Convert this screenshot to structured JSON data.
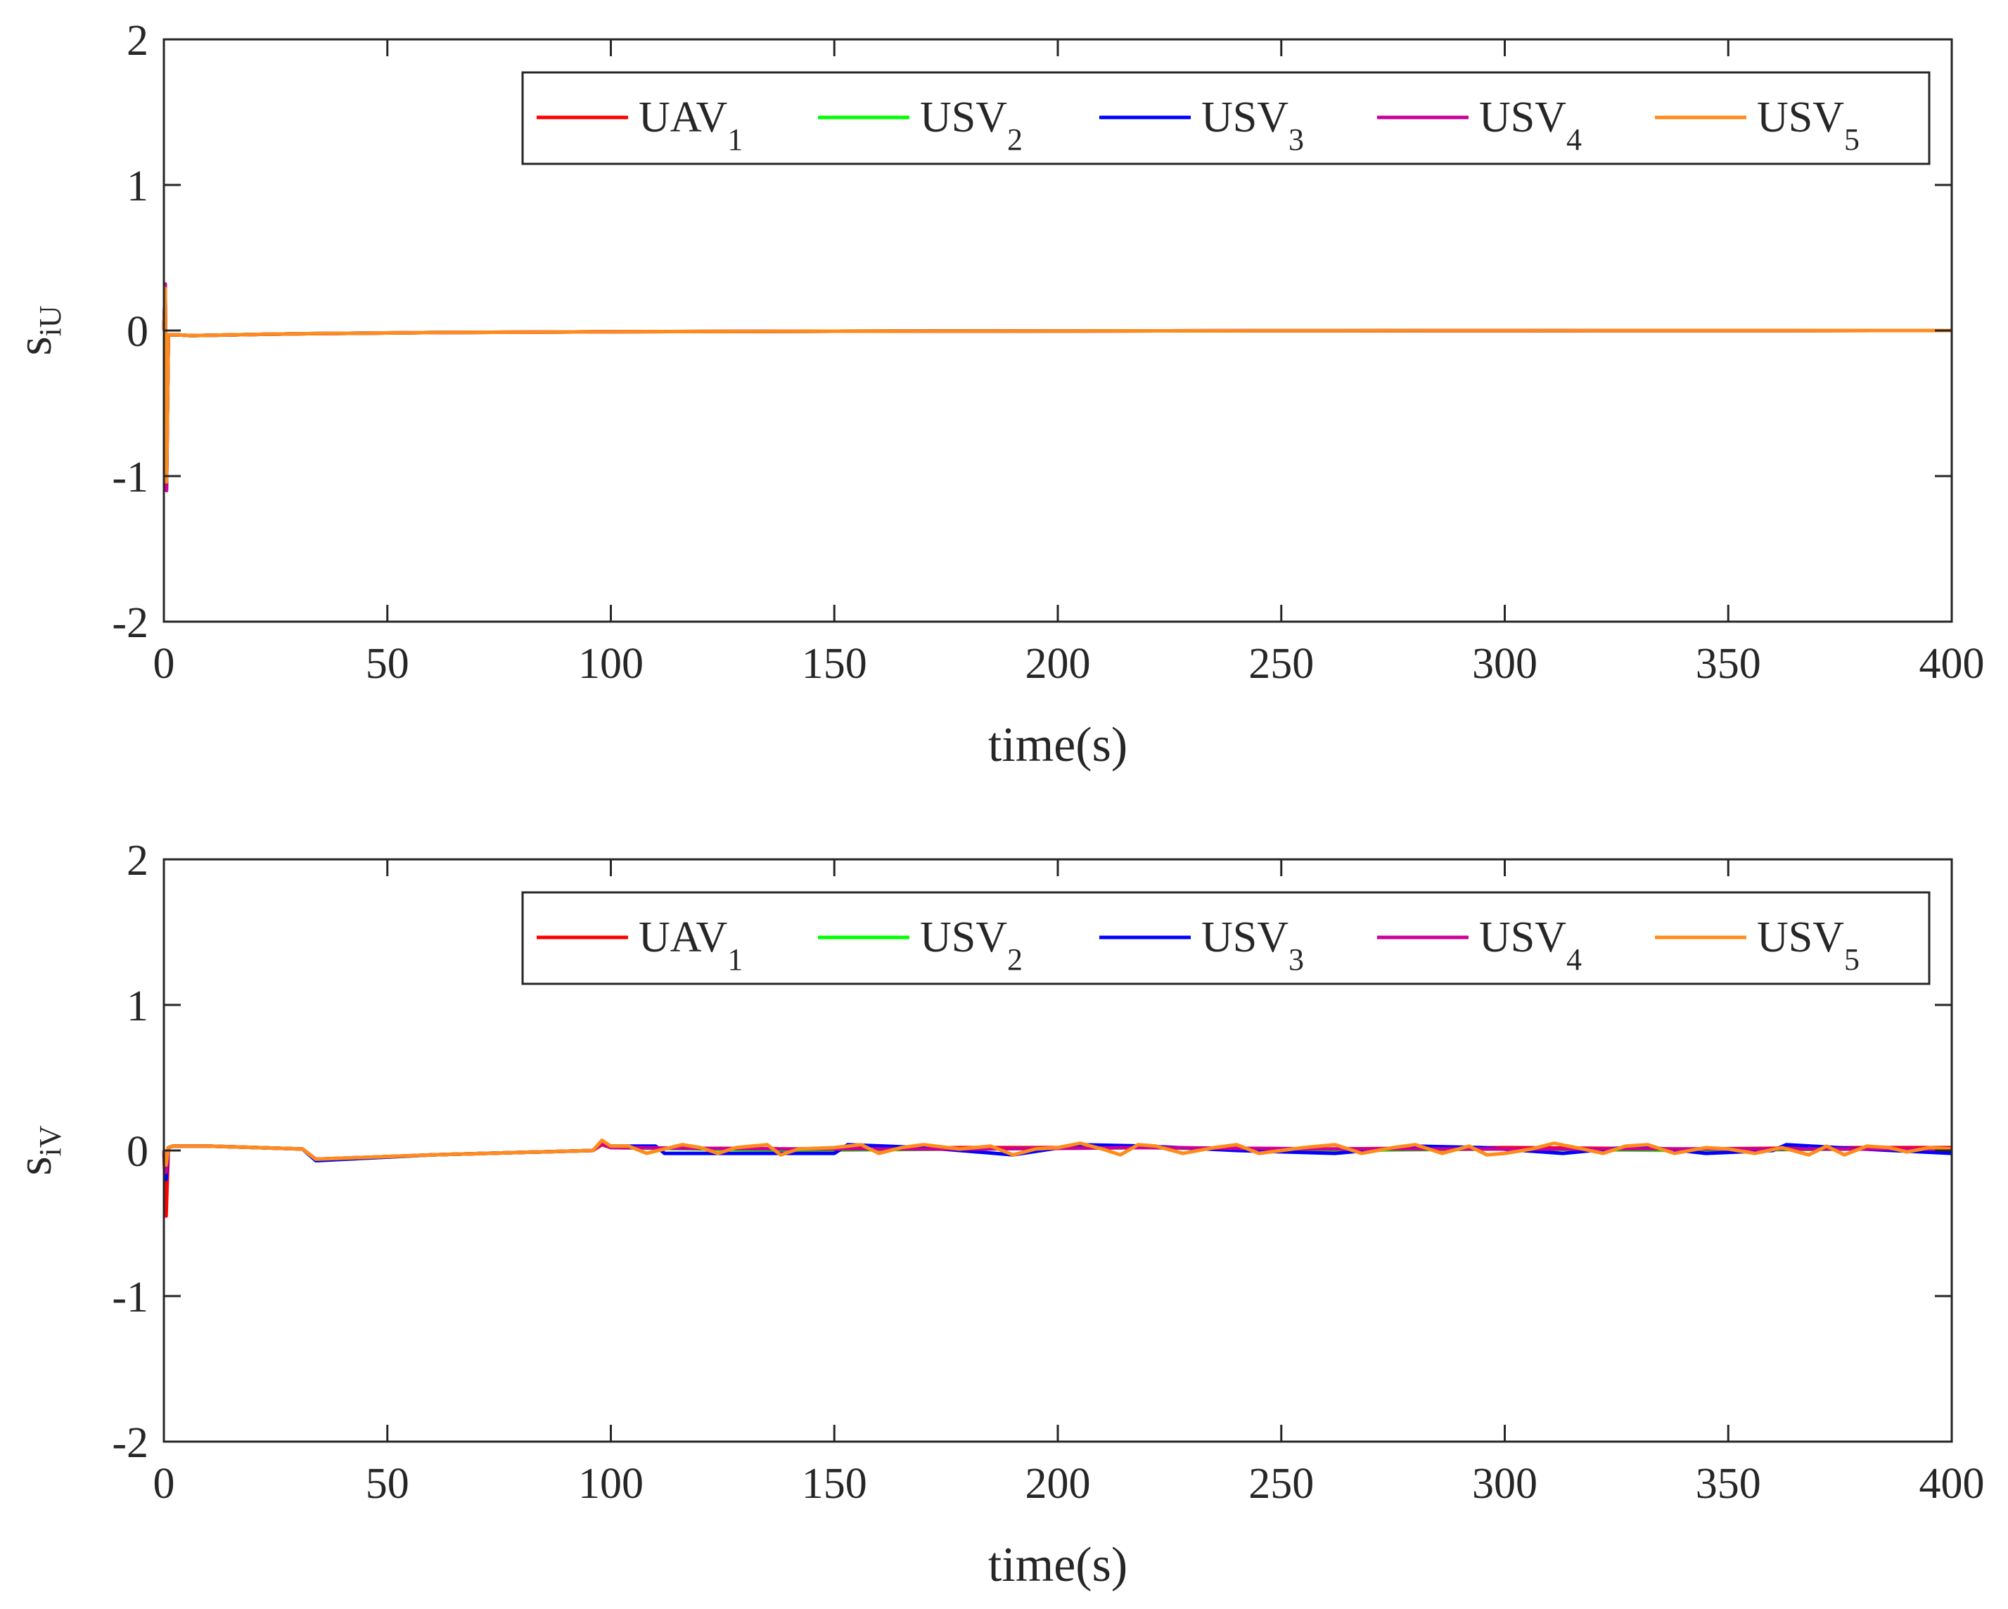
{
  "colors": {
    "UAV1": "#ff0000",
    "USV2": "#00ff00",
    "USV3": "#0000ff",
    "USV4": "#cc0099",
    "USV5": "#ff8c1a",
    "axis": "#262626"
  },
  "legend_entries": [
    {
      "base": "UAV",
      "sub": "1",
      "color_key": "UAV1"
    },
    {
      "base": "USV",
      "sub": "2",
      "color_key": "USV2"
    },
    {
      "base": "USV",
      "sub": "3",
      "color_key": "USV3"
    },
    {
      "base": "USV",
      "sub": "4",
      "color_key": "USV4"
    },
    {
      "base": "USV",
      "sub": "5",
      "color_key": "USV5"
    }
  ],
  "chart_data": [
    {
      "type": "line",
      "title": "",
      "xlabel": "time(s)",
      "ylabel_base": "s",
      "ylabel_sub": "iU",
      "xlim": [
        0,
        400
      ],
      "ylim": [
        -2,
        2
      ],
      "xticks": [
        0,
        50,
        100,
        150,
        200,
        250,
        300,
        350,
        400
      ],
      "yticks": [
        -2,
        -1,
        0,
        1,
        2
      ],
      "legend_location": "top-right",
      "grid": false,
      "series": [
        {
          "name": "UAV1",
          "x": [
            0,
            0.3,
            0.6,
            1,
            3,
            6,
            15,
            30,
            60,
            100,
            150,
            200,
            300,
            400
          ],
          "y": [
            0,
            0.28,
            -1.05,
            -0.03,
            -0.03,
            -0.035,
            -0.03,
            -0.022,
            -0.014,
            -0.008,
            -0.005,
            -0.003,
            -0.001,
            0
          ]
        },
        {
          "name": "USV2",
          "x": [
            0,
            0.3,
            0.6,
            1,
            3,
            6,
            15,
            30,
            60,
            100,
            150,
            200,
            300,
            400
          ],
          "y": [
            0,
            0.29,
            -1.06,
            -0.03,
            -0.03,
            -0.035,
            -0.03,
            -0.022,
            -0.014,
            -0.008,
            -0.005,
            -0.003,
            -0.001,
            0
          ]
        },
        {
          "name": "USV3",
          "x": [
            0,
            0.3,
            0.6,
            1,
            3,
            6,
            15,
            30,
            60,
            100,
            150,
            200,
            300,
            400
          ],
          "y": [
            0,
            0.3,
            -1.07,
            -0.03,
            -0.03,
            -0.035,
            -0.03,
            -0.022,
            -0.014,
            -0.008,
            -0.005,
            -0.003,
            -0.001,
            0
          ]
        },
        {
          "name": "USV4",
          "x": [
            0,
            0.3,
            0.6,
            1,
            3,
            6,
            15,
            30,
            60,
            100,
            150,
            200,
            300,
            400
          ],
          "y": [
            0,
            0.32,
            -1.1,
            -0.03,
            -0.03,
            -0.035,
            -0.03,
            -0.022,
            -0.014,
            -0.008,
            -0.005,
            -0.003,
            -0.001,
            0
          ]
        },
        {
          "name": "USV5",
          "x": [
            0,
            0.3,
            0.6,
            1,
            3,
            6,
            15,
            30,
            60,
            100,
            150,
            200,
            300,
            400
          ],
          "y": [
            0,
            0.29,
            -1.04,
            -0.03,
            -0.03,
            -0.035,
            -0.03,
            -0.022,
            -0.014,
            -0.008,
            -0.005,
            -0.003,
            -0.001,
            0
          ]
        }
      ]
    },
    {
      "type": "line",
      "title": "",
      "xlabel": "time(s)",
      "ylabel_base": "s",
      "ylabel_sub": "iV",
      "xlim": [
        0,
        400
      ],
      "ylim": [
        -2,
        2
      ],
      "xticks": [
        0,
        50,
        100,
        150,
        200,
        250,
        300,
        350,
        400
      ],
      "yticks": [
        -2,
        -1,
        0,
        1,
        2
      ],
      "legend_location": "top-right",
      "grid": false,
      "series": [
        {
          "name": "UAV1",
          "x": [
            0,
            0.5,
            1,
            2,
            10,
            31,
            34,
            60,
            96,
            98,
            100,
            140,
            180,
            220,
            260,
            300,
            340,
            380,
            400
          ],
          "y": [
            0,
            -0.45,
            0.02,
            0.03,
            0.03,
            0.01,
            -0.06,
            -0.03,
            0,
            0.04,
            0.02,
            0.01,
            0.02,
            0.02,
            0.01,
            0.02,
            0.01,
            0.02,
            0.02
          ]
        },
        {
          "name": "USV2",
          "x": [
            0,
            0.5,
            1,
            2,
            10,
            31,
            34,
            60,
            96,
            98,
            100,
            140,
            180,
            220,
            260,
            300,
            340,
            380,
            400
          ],
          "y": [
            0,
            -0.2,
            0.02,
            0.03,
            0.03,
            0.01,
            -0.07,
            -0.03,
            0,
            0.05,
            0.02,
            0,
            0.01,
            0.02,
            0,
            0.01,
            0,
            0.01,
            0
          ]
        },
        {
          "name": "USV3",
          "x": [
            0,
            0.5,
            1,
            2,
            10,
            31,
            34,
            60,
            96,
            98,
            100,
            110,
            112,
            150,
            153,
            170,
            190,
            205,
            220,
            240,
            262,
            280,
            295,
            313,
            330,
            345,
            360,
            363,
            380,
            400
          ],
          "y": [
            0,
            -0.2,
            0.02,
            0.03,
            0.03,
            0.01,
            -0.07,
            -0.03,
            0,
            0.06,
            0.03,
            0.03,
            -0.02,
            -0.02,
            0.04,
            0.02,
            -0.03,
            0.04,
            0.03,
            0,
            -0.02,
            0.03,
            0.02,
            -0.02,
            0.03,
            -0.02,
            0,
            0.04,
            0.01,
            -0.02
          ]
        },
        {
          "name": "USV4",
          "x": [
            0,
            0.5,
            1,
            2,
            10,
            31,
            34,
            60,
            96,
            98,
            100,
            140,
            180,
            220,
            260,
            300,
            340,
            380,
            400
          ],
          "y": [
            0,
            -0.15,
            0.02,
            0.03,
            0.03,
            0.01,
            -0.06,
            -0.03,
            0,
            0.05,
            0.02,
            0.01,
            0.01,
            0.02,
            0.01,
            0.01,
            0.01,
            0.01,
            0.01
          ]
        },
        {
          "name": "USV5",
          "x": [
            0,
            0.5,
            1,
            2,
            10,
            31,
            34,
            60,
            96,
            98,
            100,
            104,
            108,
            116,
            120,
            124,
            128,
            135,
            138,
            142,
            150,
            156,
            160,
            165,
            170,
            178,
            185,
            190,
            195,
            200,
            205,
            210,
            214,
            218,
            222,
            228,
            235,
            240,
            245,
            250,
            255,
            262,
            268,
            275,
            280,
            286,
            292,
            296,
            300,
            306,
            311,
            316,
            322,
            327,
            332,
            338,
            345,
            350,
            356,
            362,
            368,
            372,
            376,
            381,
            386,
            390,
            395,
            400
          ],
          "y": [
            0,
            -0.1,
            0.02,
            0.03,
            0.03,
            0.01,
            -0.06,
            -0.03,
            0,
            0.07,
            0.03,
            0.03,
            -0.02,
            0.04,
            0.02,
            -0.02,
            0.02,
            0.04,
            -0.03,
            0.01,
            0.02,
            0.04,
            -0.02,
            0.02,
            0.04,
            0.01,
            0.03,
            -0.03,
            0.01,
            0.02,
            0.05,
            0.01,
            -0.03,
            0.04,
            0.03,
            -0.02,
            0.02,
            0.04,
            -0.02,
            0,
            0.02,
            0.04,
            -0.02,
            0.02,
            0.04,
            -0.02,
            0.03,
            -0.03,
            -0.02,
            0.01,
            0.05,
            0.02,
            -0.02,
            0.03,
            0.04,
            -0.02,
            0.02,
            0.01,
            -0.02,
            0.02,
            -0.03,
            0.03,
            -0.03,
            0.03,
            0.02,
            -0.01,
            0.02,
            0.01
          ]
        }
      ]
    }
  ]
}
